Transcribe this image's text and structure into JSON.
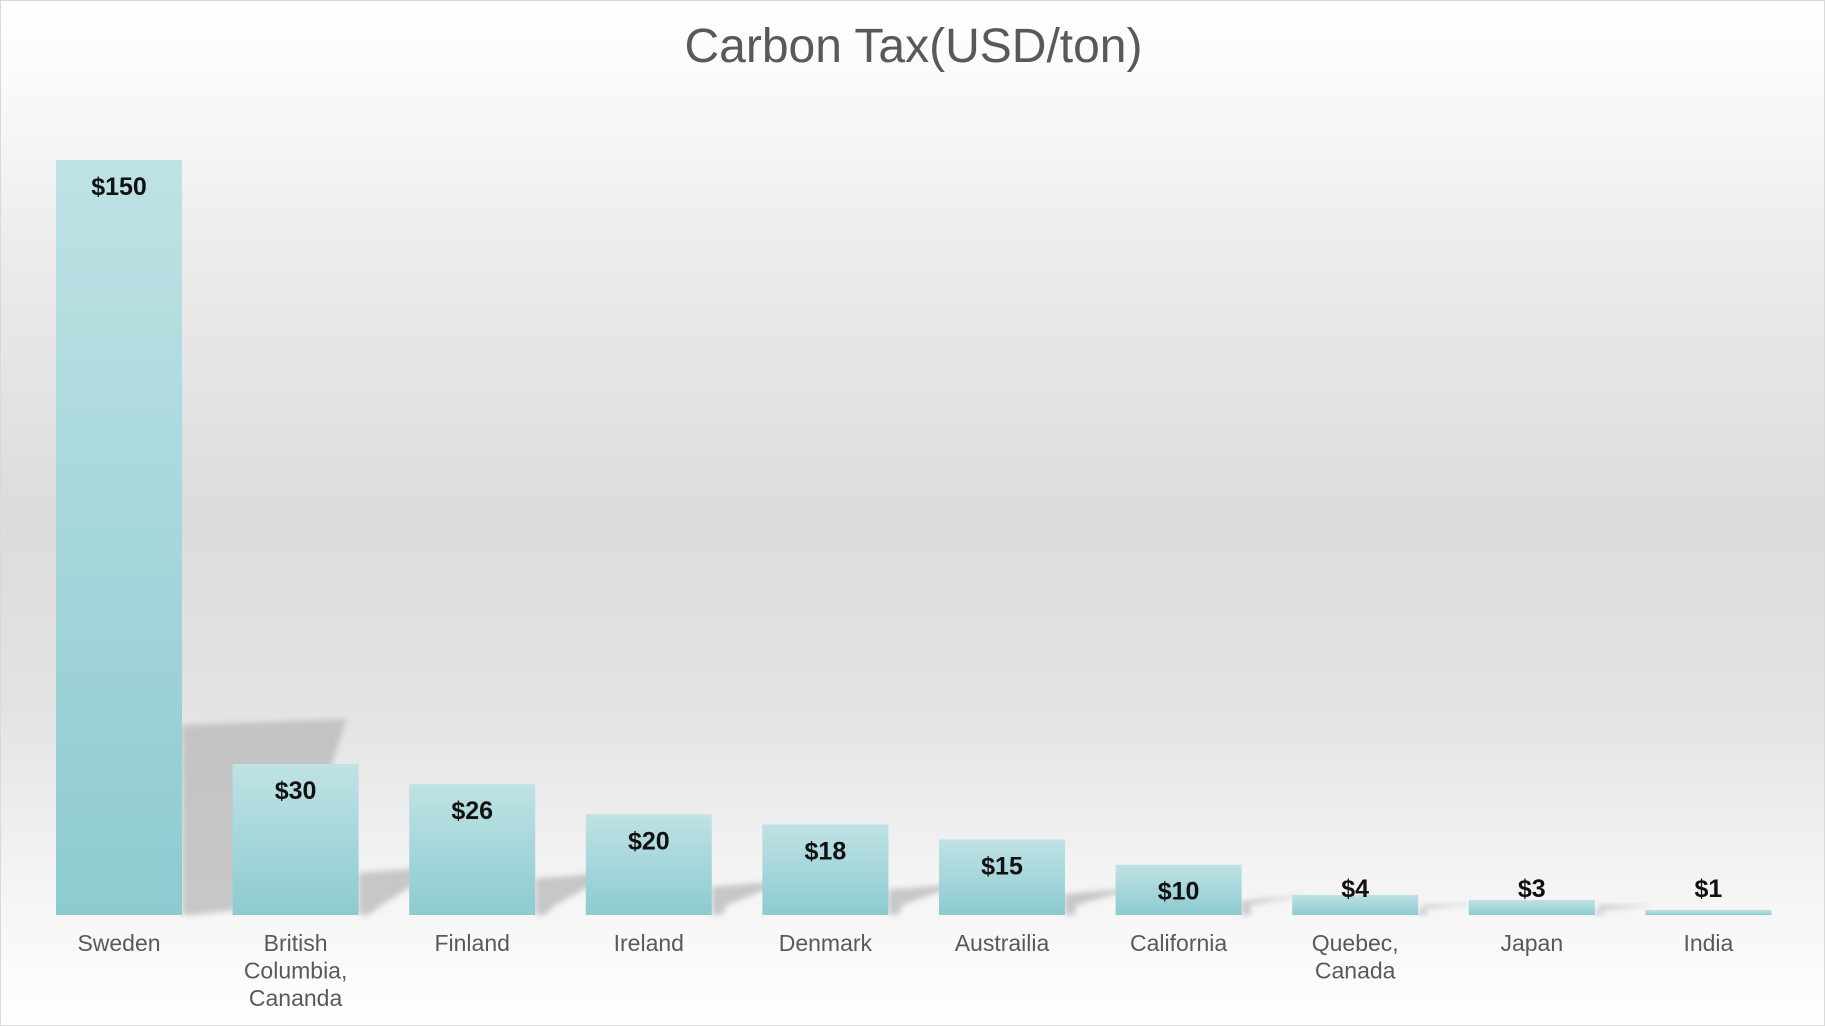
{
  "chart_data": {
    "type": "bar",
    "title": "Carbon Tax(USD/ton)",
    "xlabel": "",
    "ylabel": "",
    "categories": [
      [
        "Sweden"
      ],
      [
        "British",
        "Columbia,",
        "Cananda"
      ],
      [
        "Finland"
      ],
      [
        "Ireland"
      ],
      [
        "Denmark"
      ],
      [
        "Austrailia"
      ],
      [
        "California"
      ],
      [
        "Quebec,",
        "Canada"
      ],
      [
        "Japan"
      ],
      [
        "India"
      ]
    ],
    "values": [
      150,
      30,
      26,
      20,
      18,
      15,
      10,
      4,
      3,
      1
    ],
    "data_labels": [
      "$150",
      "$30",
      "$26",
      "$20",
      "$18",
      "$15",
      "$10",
      "$4",
      "$3",
      "$1"
    ],
    "ylim": [
      0,
      150
    ],
    "grid": false,
    "legend": "none",
    "bar_color_top": "#bfe2e5",
    "bar_color_bottom": "#8ccbd0",
    "shadow_color": "#b8b8b8"
  }
}
